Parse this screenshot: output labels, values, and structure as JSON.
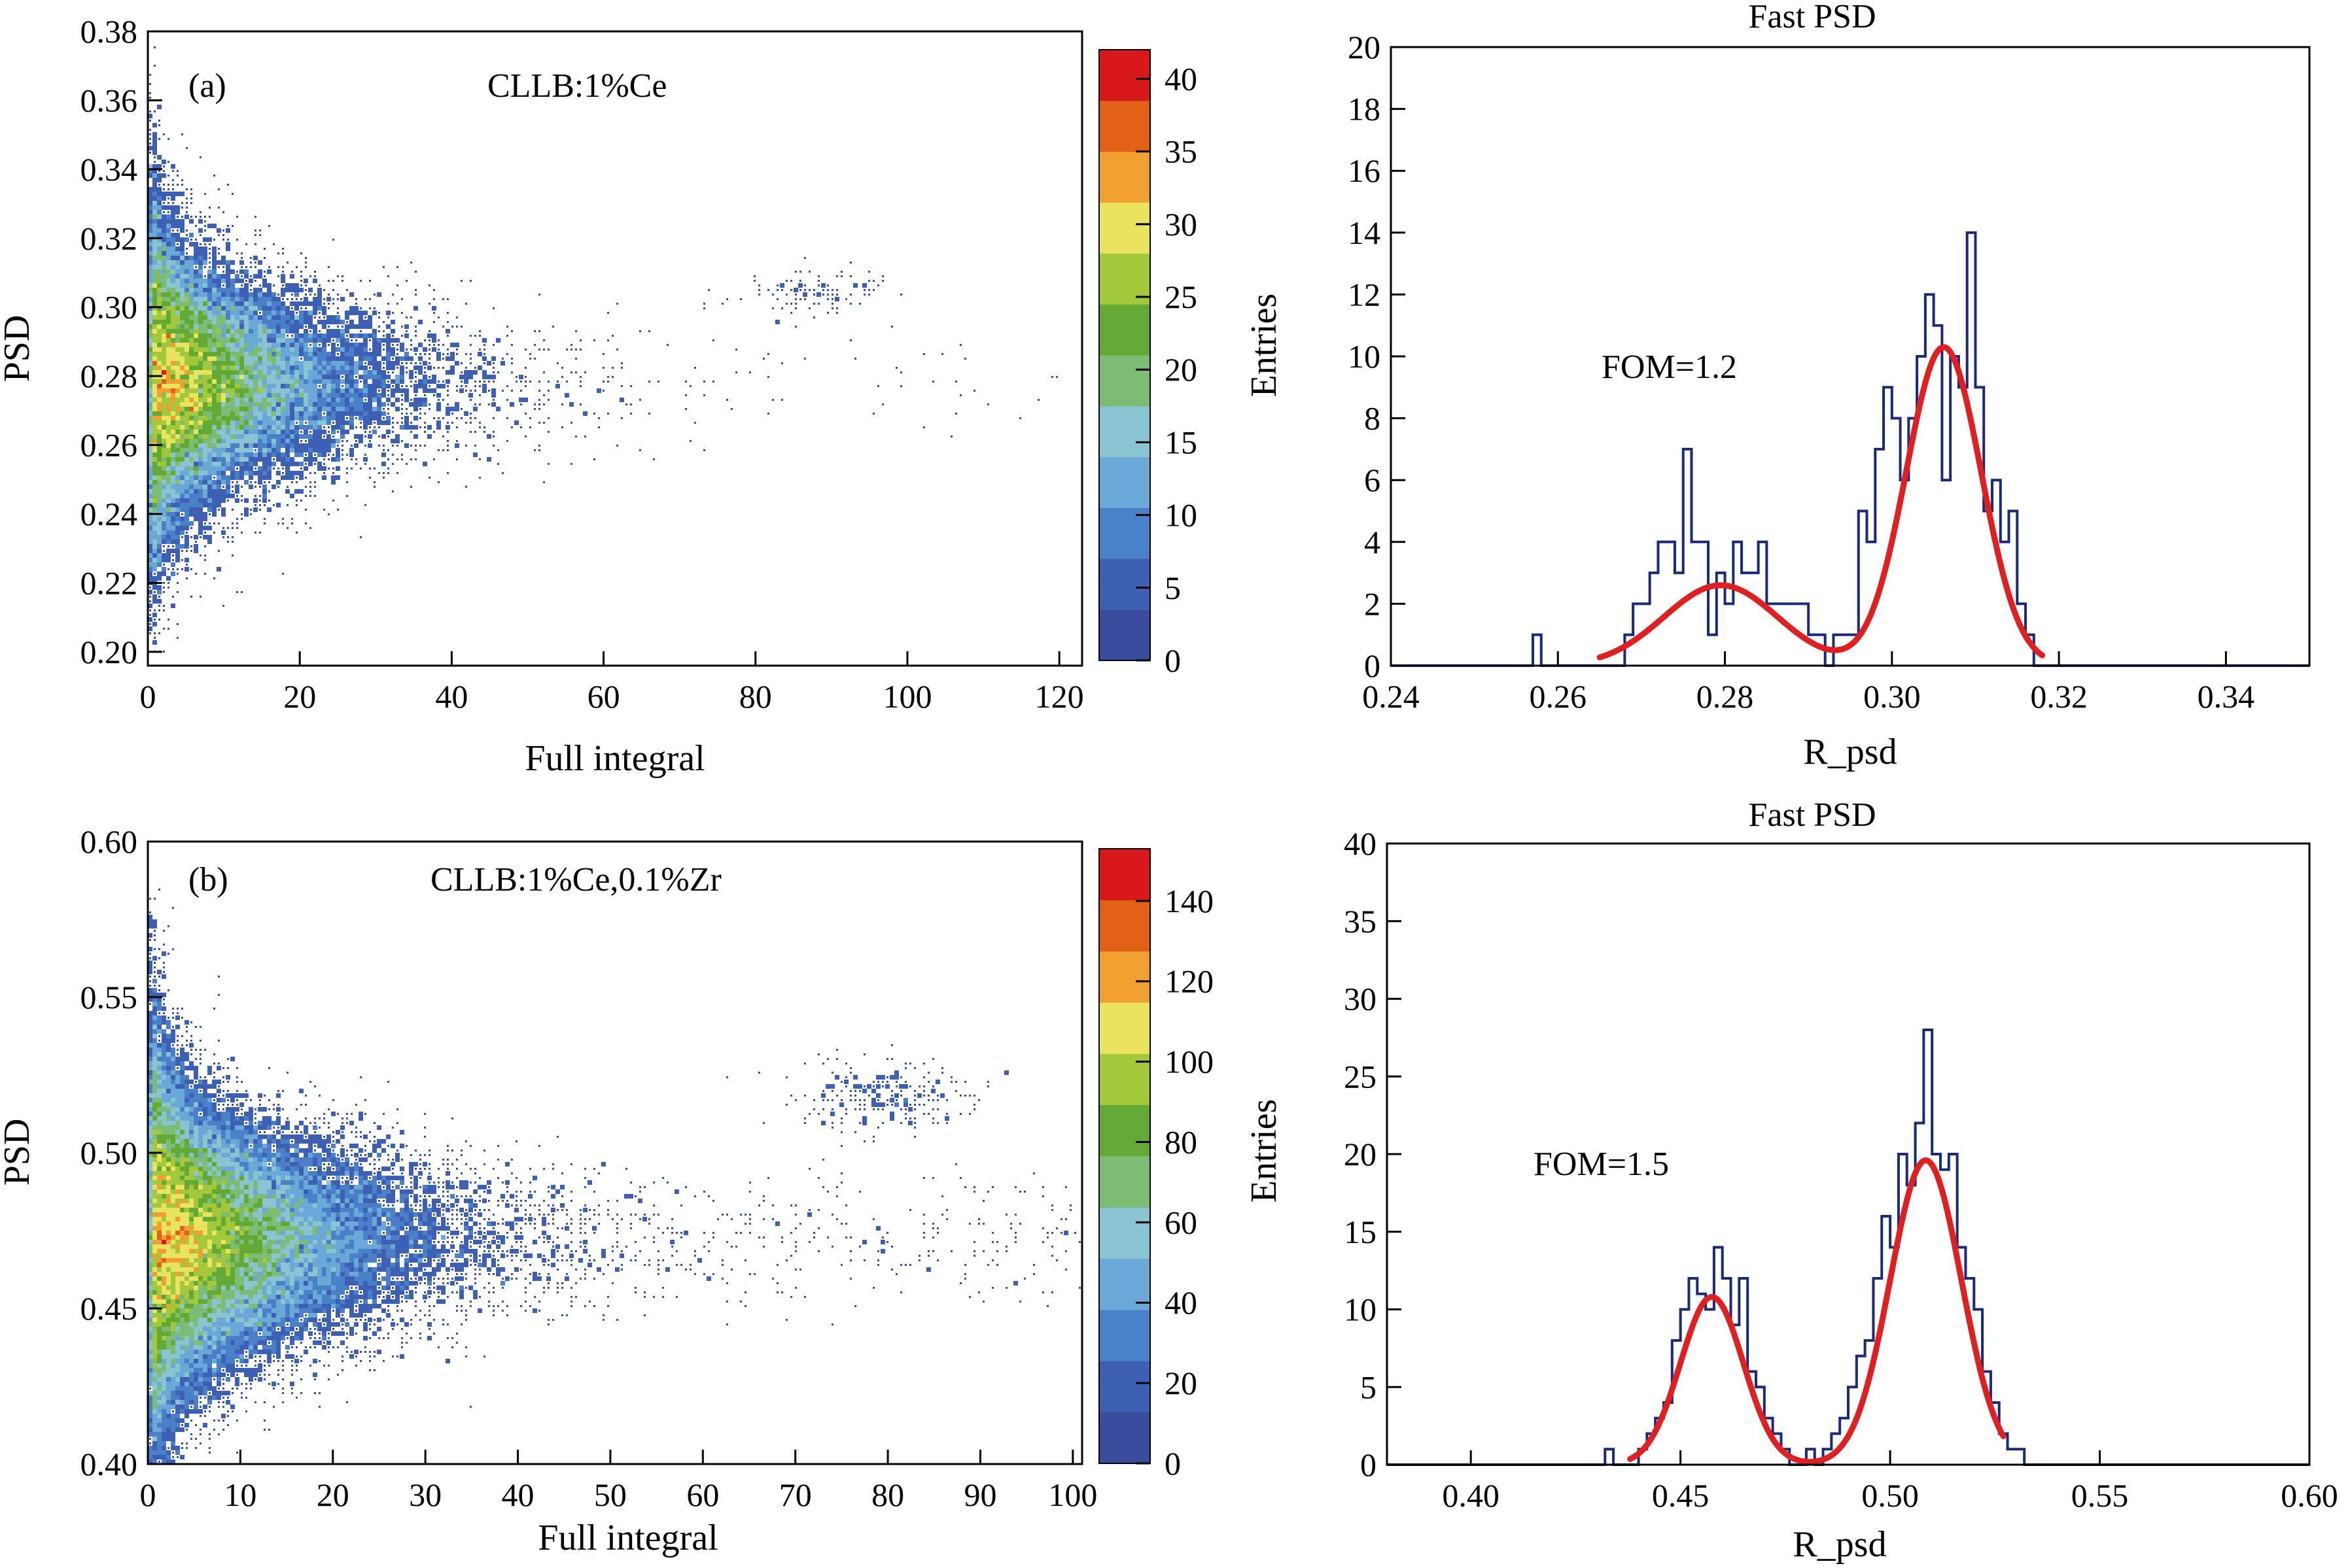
{
  "chart_data": [
    {
      "id": "a-scatter",
      "type": "heatmap",
      "panel_label": "(a)",
      "annotation": "CLLB:1%Ce",
      "xlabel": "Full integral",
      "ylabel": "PSD",
      "xlim": [
        0,
        123
      ],
      "ylim": [
        0.196,
        0.38
      ],
      "xticks": [
        0,
        20,
        40,
        60,
        80,
        100,
        120
      ],
      "xtick_labels": [
        "0",
        "20",
        "40",
        "60",
        "80",
        "100",
        "120"
      ],
      "yticks": [
        0.2,
        0.22,
        0.24,
        0.26,
        0.28,
        0.3,
        0.32,
        0.34,
        0.36,
        0.38
      ],
      "ytick_labels": [
        "0.20",
        "0.22",
        "0.24",
        "0.26",
        "0.28",
        "0.30",
        "0.32",
        "0.34",
        "0.36",
        "0.38"
      ],
      "colorbar": {
        "ticks": [
          0,
          5,
          10,
          15,
          20,
          25,
          30,
          35,
          40
        ],
        "tick_labels": [
          "0",
          "5",
          "10",
          "15",
          "20",
          "25",
          "30",
          "35",
          "40"
        ],
        "range": [
          0,
          42
        ]
      },
      "clusters": [
        {
          "description": "gamma band",
          "center_psd": 0.278,
          "x_range": [
            0,
            123
          ],
          "peak_count": 40
        },
        {
          "description": "neutron island",
          "center_psd": 0.304,
          "x_range": [
            75,
            100
          ]
        }
      ],
      "grid": false
    },
    {
      "id": "a-hist",
      "type": "histogram",
      "title": "Fast PSD",
      "annotation": "FOM=1.2",
      "xlabel": "R_psd",
      "ylabel": "Entries",
      "xlim": [
        0.24,
        0.35
      ],
      "ylim": [
        0,
        20
      ],
      "xticks": [
        0.24,
        0.26,
        0.28,
        0.3,
        0.32,
        0.34
      ],
      "xtick_labels": [
        "0.24",
        "0.26",
        "0.28",
        "0.30",
        "0.32",
        "0.34"
      ],
      "yticks": [
        0,
        2,
        4,
        6,
        8,
        10,
        12,
        14,
        16,
        18,
        20
      ],
      "ytick_labels": [
        "0",
        "2",
        "4",
        "6",
        "8",
        "10",
        "12",
        "14",
        "16",
        "18",
        "20"
      ],
      "bin_width": 0.001,
      "bins": [
        [
          0.257,
          1
        ],
        [
          0.268,
          1
        ],
        [
          0.269,
          2
        ],
        [
          0.27,
          2
        ],
        [
          0.271,
          3
        ],
        [
          0.272,
          4
        ],
        [
          0.273,
          4
        ],
        [
          0.274,
          3
        ],
        [
          0.275,
          7
        ],
        [
          0.276,
          4
        ],
        [
          0.277,
          4
        ],
        [
          0.278,
          1
        ],
        [
          0.279,
          3
        ],
        [
          0.28,
          2
        ],
        [
          0.281,
          4
        ],
        [
          0.282,
          3
        ],
        [
          0.283,
          3
        ],
        [
          0.284,
          4
        ],
        [
          0.285,
          2
        ],
        [
          0.286,
          2
        ],
        [
          0.287,
          2
        ],
        [
          0.288,
          2
        ],
        [
          0.289,
          2
        ],
        [
          0.29,
          1
        ],
        [
          0.291,
          1
        ],
        [
          0.293,
          1
        ],
        [
          0.294,
          1
        ],
        [
          0.295,
          1
        ],
        [
          0.296,
          5
        ],
        [
          0.297,
          4
        ],
        [
          0.298,
          7
        ],
        [
          0.299,
          9
        ],
        [
          0.3,
          8
        ],
        [
          0.301,
          6
        ],
        [
          0.302,
          8
        ],
        [
          0.303,
          10
        ],
        [
          0.304,
          12
        ],
        [
          0.305,
          11
        ],
        [
          0.306,
          6
        ],
        [
          0.307,
          10
        ],
        [
          0.308,
          9
        ],
        [
          0.309,
          14
        ],
        [
          0.31,
          9
        ],
        [
          0.311,
          5
        ],
        [
          0.312,
          6
        ],
        [
          0.313,
          4
        ],
        [
          0.314,
          5
        ],
        [
          0.315,
          2
        ],
        [
          0.316,
          1
        ]
      ],
      "fit": {
        "color": "#e02020",
        "range": [
          0.265,
          0.318
        ],
        "components": [
          {
            "mean": 0.2795,
            "sigma": 0.0068,
            "amplitude": 2.6
          },
          {
            "mean": 0.3062,
            "sigma": 0.0045,
            "amplitude": 10.3
          }
        ]
      },
      "grid": false
    },
    {
      "id": "b-scatter",
      "type": "heatmap",
      "panel_label": "(b)",
      "annotation": "CLLB:1%Ce,0.1%Zr",
      "xlabel": "Full integral",
      "ylabel": "PSD",
      "xlim": [
        0,
        101
      ],
      "ylim": [
        0.4,
        0.6
      ],
      "xticks": [
        0,
        10,
        20,
        30,
        40,
        50,
        60,
        70,
        80,
        90,
        100
      ],
      "xtick_labels": [
        "0",
        "10",
        "20",
        "30",
        "40",
        "50",
        "60",
        "70",
        "80",
        "90",
        "100"
      ],
      "yticks": [
        0.4,
        0.45,
        0.5,
        0.55,
        0.6
      ],
      "ytick_labels": [
        "0.40",
        "0.45",
        "0.50",
        "0.55",
        "0.60"
      ],
      "colorbar": {
        "ticks": [
          0,
          20,
          40,
          60,
          80,
          100,
          120,
          140
        ],
        "tick_labels": [
          "0",
          "20",
          "40",
          "60",
          "80",
          "100",
          "120",
          "140"
        ],
        "range": [
          0,
          153
        ]
      },
      "clusters": [
        {
          "description": "gamma band",
          "center_psd": 0.472,
          "x_range": [
            0,
            101
          ],
          "peak_count": 150
        },
        {
          "description": "neutron island",
          "center_psd": 0.518,
          "x_range": [
            70,
            92
          ]
        }
      ],
      "grid": false
    },
    {
      "id": "b-hist",
      "type": "histogram",
      "title": "Fast PSD",
      "annotation": "FOM=1.5",
      "xlabel": "R_psd",
      "ylabel": "Entries",
      "xlim": [
        0.38,
        0.6
      ],
      "ylim": [
        0,
        40
      ],
      "xticks": [
        0.4,
        0.45,
        0.5,
        0.55,
        0.6
      ],
      "xtick_labels": [
        "0.40",
        "0.45",
        "0.50",
        "0.55",
        "0.60"
      ],
      "yticks": [
        0,
        5,
        10,
        15,
        20,
        25,
        30,
        35,
        40
      ],
      "ytick_labels": [
        "0",
        "5",
        "10",
        "15",
        "20",
        "25",
        "30",
        "35",
        "40"
      ],
      "bin_width": 0.002,
      "bins": [
        [
          0.432,
          1
        ],
        [
          0.44,
          1
        ],
        [
          0.442,
          2
        ],
        [
          0.444,
          3
        ],
        [
          0.446,
          4
        ],
        [
          0.448,
          8
        ],
        [
          0.45,
          10
        ],
        [
          0.452,
          12
        ],
        [
          0.454,
          11
        ],
        [
          0.456,
          10
        ],
        [
          0.458,
          14
        ],
        [
          0.46,
          12
        ],
        [
          0.462,
          9
        ],
        [
          0.464,
          12
        ],
        [
          0.466,
          6
        ],
        [
          0.468,
          5
        ],
        [
          0.47,
          3
        ],
        [
          0.472,
          2
        ],
        [
          0.474,
          1
        ],
        [
          0.48,
          1
        ],
        [
          0.484,
          1
        ],
        [
          0.486,
          2
        ],
        [
          0.488,
          3
        ],
        [
          0.49,
          5
        ],
        [
          0.492,
          7
        ],
        [
          0.494,
          8
        ],
        [
          0.496,
          12
        ],
        [
          0.498,
          16
        ],
        [
          0.5,
          14
        ],
        [
          0.502,
          20
        ],
        [
          0.504,
          18
        ],
        [
          0.506,
          22
        ],
        [
          0.508,
          28
        ],
        [
          0.51,
          20
        ],
        [
          0.512,
          19
        ],
        [
          0.514,
          20
        ],
        [
          0.516,
          14
        ],
        [
          0.518,
          12
        ],
        [
          0.52,
          10
        ],
        [
          0.522,
          6
        ],
        [
          0.524,
          4
        ],
        [
          0.526,
          2
        ],
        [
          0.528,
          1
        ],
        [
          0.53,
          1
        ]
      ],
      "fit": {
        "color": "#e02020",
        "range": [
          0.438,
          0.527
        ],
        "components": [
          {
            "mean": 0.4575,
            "sigma": 0.0075,
            "amplitude": 10.8
          },
          {
            "mean": 0.5085,
            "sigma": 0.0085,
            "amplitude": 19.6
          }
        ]
      },
      "grid": false
    }
  ],
  "colors": {
    "axis": "#000000",
    "histogram": "#1a2a7a",
    "fit": "#e02020",
    "scatter_low": "#3b4ea8",
    "scatter_high": "#d81818"
  },
  "colormap": [
    "#3a4c9c",
    "#3d60b4",
    "#4a80c8",
    "#6aa8d8",
    "#8ac4d0",
    "#7cbc74",
    "#62aa34",
    "#a4c83c",
    "#e8e460",
    "#f0a030",
    "#e06018",
    "#d81818"
  ]
}
